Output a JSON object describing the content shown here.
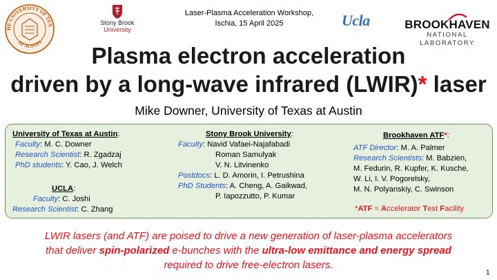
{
  "header": {
    "workshop_line1": "Laser-Plasma Acceleration Workshop,",
    "workshop_line2": "Ischia, 15 April 2025"
  },
  "logos": {
    "ut_seal_top": "THE UNIVERSITY OF TEXAS",
    "ut_seal_bottom": "AT AUSTIN",
    "stony_brook_1": "Stony Brook",
    "stony_brook_2": "University",
    "ucla": "Ucla",
    "bnl_1": "BROOKHAVEN",
    "bnl_2": "NATIONAL LABORATORY"
  },
  "title": {
    "line1": "Plasma electron acceleration",
    "line2_main": "driven by a long-wave infrared (LWIR)",
    "line2_star": "*",
    "line2_end": " laser"
  },
  "author": "Mike Downer, University of Texas at Austin",
  "collaborators": {
    "ut": {
      "header": "University of Texas at Austin",
      "colon": ":",
      "faculty_role": "Faculty",
      "faculty": ":  M. C. Downer",
      "rs_role": "Research Scientist",
      "rs": ": R. Zgadzaj",
      "phd_role": "PhD students",
      "phd": ": Y. Cao, J. Welch"
    },
    "ucla": {
      "header": "UCLA",
      "colon": ":",
      "faculty_role": "Faculty",
      "faculty": ": C. Joshi",
      "rs_role": "Research Scientist",
      "rs": ": C. Zhang"
    },
    "stony_brook": {
      "header": "Stony Brook University",
      "colon": ":",
      "faculty_role": "Faculty",
      "faculty_1": ":  Navid Vafaei-Najafabadi",
      "faculty_2": "Roman Samulyak",
      "faculty_3": "V. N. Litvinenko",
      "postdocs_role": "Postdocs",
      "postdocs": ":  L. D. Amorin, I. Petrushina",
      "phd_role": "PhD Students",
      "phd_1": ": A. Cheng, A. Gaikwad,",
      "phd_2": "P. Iapozzutto, P. Kumar"
    },
    "bnl": {
      "header": "Brookhaven ATF",
      "star": "*",
      "colon": ":",
      "director_role": "ATF Director",
      "director": ": M. A. Palmer",
      "rs_role": "Research Scientists",
      "rs_1": ":  M. Babzien,",
      "rs_2": "M. Fedurin, R. Kupfer, K. Kusche,",
      "rs_3": "W. Li, I. V. Pogorelsky,",
      "rs_4": "M. N. Polyanskiy, C. Swinson"
    },
    "atf_note": {
      "prefix": "*",
      "atf": "ATF",
      "eq": " = ",
      "a": "A",
      "ccelerator": "ccelerator ",
      "t": "T",
      "est": "est ",
      "f": "F",
      "acility": "acility"
    }
  },
  "footer": {
    "line1": "LWIR lasers (and ATF) are poised to drive a new generation of laser-plasma accelerators",
    "line2_a": "that deliver ",
    "line2_b": "spin-polarized",
    "line2_c": " e-bunches with the ",
    "line2_d": "ultra-low emittance and energy spread",
    "line3": "required to drive free-electron lasers."
  },
  "page_number": "1",
  "colors": {
    "accent_red": "#e8141c",
    "role_blue": "#1f56c9",
    "panel_bg": "#e7f0de",
    "ut_orange": "#bf5700"
  }
}
